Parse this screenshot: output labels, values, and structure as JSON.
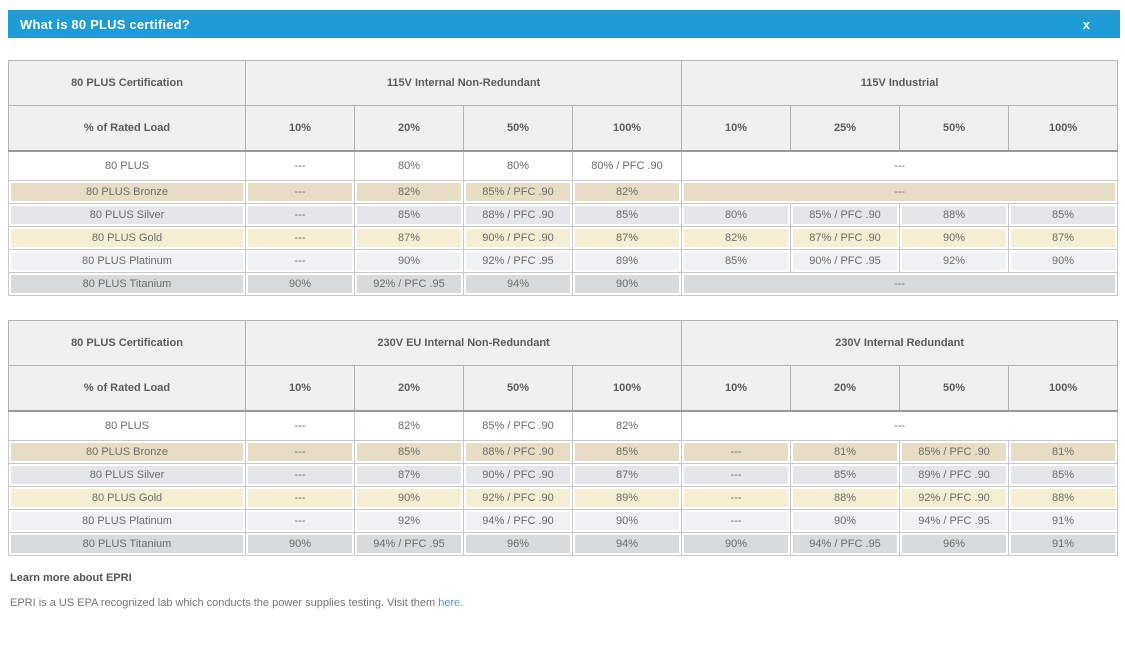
{
  "modal": {
    "title": "What is 80 PLUS certified?",
    "close_label": "x"
  },
  "colors": {
    "header_blue": "#1f9cd8",
    "bronze_row": "#e6ddc4",
    "silver_row": "#e4e6e9",
    "gold_row": "#f6eed3",
    "platinum_row": "#f0f1f3",
    "titanium_row": "#d8dadb",
    "link_blue": "#45a3d6"
  },
  "tables": [
    {
      "corner_label": "80 PLUS Certification",
      "load_label": "% of Rated Load",
      "groups": [
        {
          "label": "115V Internal Non-Redundant",
          "loads": [
            "10%",
            "20%",
            "50%",
            "100%"
          ]
        },
        {
          "label": "115V Industrial",
          "loads": [
            "10%",
            "25%",
            "50%",
            "100%"
          ]
        }
      ],
      "rows": [
        {
          "label": "80 PLUS",
          "style": "white",
          "g1": [
            "---",
            "80%",
            "80%",
            "80% / PFC .90"
          ],
          "g2_merged": "---"
        },
        {
          "label": "80 PLUS Bronze",
          "style": "bronze",
          "g1": [
            "---",
            "82%",
            "85% / PFC .90",
            "82%"
          ],
          "g2_merged": "---"
        },
        {
          "label": "80 PLUS Silver",
          "style": "silver",
          "g1": [
            "---",
            "85%",
            "88% / PFC .90",
            "85%"
          ],
          "g2": [
            "80%",
            "85% / PFC .90",
            "88%",
            "85%"
          ]
        },
        {
          "label": "80 PLUS Gold",
          "style": "gold",
          "g1": [
            "---",
            "87%",
            "90% / PFC .90",
            "87%"
          ],
          "g2": [
            "82%",
            "87% / PFC .90",
            "90%",
            "87%"
          ]
        },
        {
          "label": "80 PLUS Platinum",
          "style": "platinum",
          "g1": [
            "---",
            "90%",
            "92% / PFC .95",
            "89%"
          ],
          "g2": [
            "85%",
            "90% / PFC .95",
            "92%",
            "90%"
          ]
        },
        {
          "label": "80 PLUS Titanium",
          "style": "titanium",
          "g1": [
            "90%",
            "92% / PFC .95",
            "94%",
            "90%"
          ],
          "g2_merged": "---"
        }
      ]
    },
    {
      "corner_label": "80 PLUS Certification",
      "load_label": "% of Rated Load",
      "groups": [
        {
          "label": "230V EU Internal Non-Redundant",
          "loads": [
            "10%",
            "20%",
            "50%",
            "100%"
          ]
        },
        {
          "label": "230V Internal Redundant",
          "loads": [
            "10%",
            "20%",
            "50%",
            "100%"
          ]
        }
      ],
      "rows": [
        {
          "label": "80 PLUS",
          "style": "white",
          "g1": [
            "---",
            "82%",
            "85% / PFC .90",
            "82%"
          ],
          "g2_merged": "---"
        },
        {
          "label": "80 PLUS Bronze",
          "style": "bronze",
          "g1": [
            "---",
            "85%",
            "88% / PFC .90",
            "85%"
          ],
          "g2": [
            "---",
            "81%",
            "85% / PFC .90",
            "81%"
          ]
        },
        {
          "label": "80 PLUS Silver",
          "style": "silver",
          "g1": [
            "---",
            "87%",
            "90% / PFC .90",
            "87%"
          ],
          "g2": [
            "---",
            "85%",
            "89% / PFC .90",
            "85%"
          ]
        },
        {
          "label": "80 PLUS Gold",
          "style": "gold",
          "g1": [
            "---",
            "90%",
            "92% / PFC .90",
            "89%"
          ],
          "g2": [
            "---",
            "88%",
            "92% / PFC .90",
            "88%"
          ]
        },
        {
          "label": "80 PLUS Platinum",
          "style": "platinum",
          "g1": [
            "---",
            "92%",
            "94% / PFC .90",
            "90%"
          ],
          "g2": [
            "---",
            "90%",
            "94% / PFC .95",
            "91%"
          ]
        },
        {
          "label": "80 PLUS Titanium",
          "style": "titanium",
          "g1": [
            "90%",
            "94% / PFC .95",
            "96%",
            "94%"
          ],
          "g2": [
            "90%",
            "94% / PFC .95",
            "96%",
            "91%"
          ]
        }
      ]
    }
  ],
  "footer": {
    "heading": "Learn more about EPRI",
    "text_before_link": "EPRI is a US EPA recognized lab which conducts the power supplies testing. Visit them ",
    "link_text": "here",
    "text_after_link": "."
  }
}
